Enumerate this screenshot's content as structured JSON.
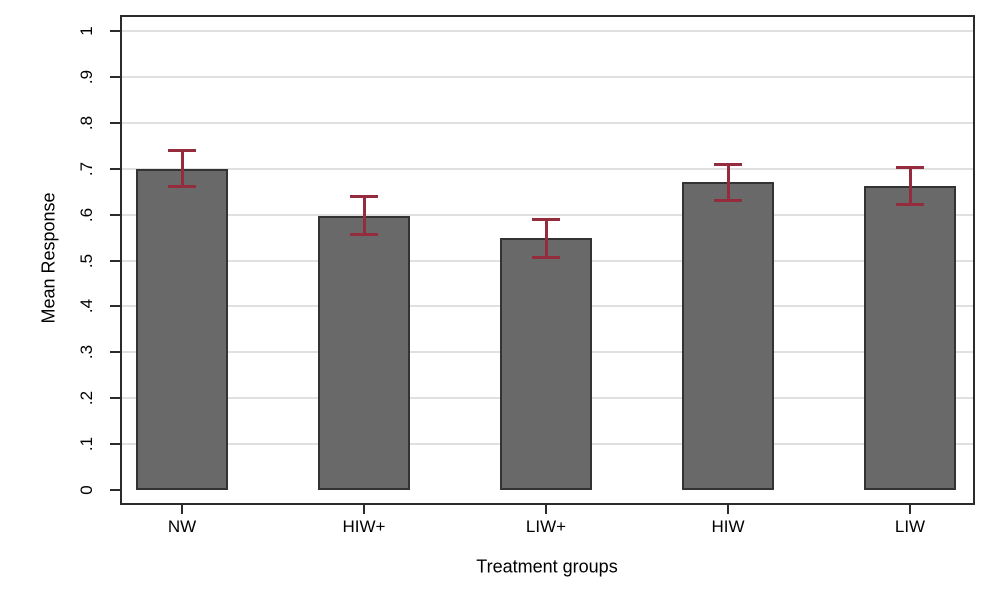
{
  "chart_data": {
    "type": "bar",
    "title": "",
    "xlabel": "Treatment groups",
    "ylabel": "Mean Response",
    "categories": [
      "NW",
      "HIW+",
      "LIW+",
      "HIW",
      "LIW"
    ],
    "values": [
      0.7,
      0.598,
      0.548,
      0.67,
      0.663
    ],
    "error_low": [
      0.66,
      0.555,
      0.505,
      0.63,
      0.622
    ],
    "error_high": [
      0.74,
      0.64,
      0.59,
      0.71,
      0.703
    ],
    "ylim": [
      0,
      1
    ],
    "y_tick_labels": [
      "0",
      ".1",
      ".2",
      ".3",
      ".4",
      ".5",
      ".6",
      ".7",
      ".8",
      ".9",
      "1"
    ],
    "y_tick_values": [
      0,
      0.1,
      0.2,
      0.3,
      0.4,
      0.5,
      0.6,
      0.7,
      0.8,
      0.9,
      1
    ],
    "grid": true,
    "grid_at_zero": false,
    "legend": "none",
    "colors": {
      "bar_fill": "#696969",
      "bar_border": "#333333",
      "error_bar": "#942c3d",
      "gridline": "#e0e0e0",
      "axis": "#2b2b2b",
      "text": "#000000",
      "background": "#ffffff"
    }
  }
}
